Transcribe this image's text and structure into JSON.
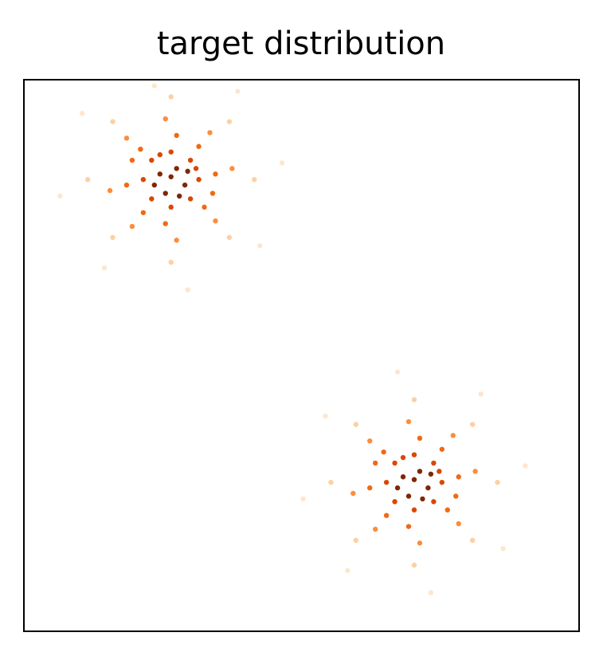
{
  "chart_data": {
    "type": "scatter",
    "title": "target distribution",
    "xlim": [
      0,
      10
    ],
    "ylim": [
      0,
      10
    ],
    "series": [
      {
        "color": "#fee6ce",
        "x": [
          4.65,
          3.85,
          2.35,
          1.05,
          0.65,
          1.45,
          2.95,
          4.25,
          9.03,
          8.23,
          6.73,
          5.43,
          5.03,
          5.83,
          7.33,
          8.63
        ],
        "values": [
          8.49,
          9.79,
          9.89,
          9.39,
          7.89,
          6.59,
          6.19,
          6.99,
          3.0,
          4.3,
          4.7,
          3.9,
          2.4,
          1.1,
          0.7,
          1.5
        ]
      },
      {
        "color": "#fdd0a2",
        "x": [
          4.15,
          3.7,
          2.65,
          1.6,
          1.15,
          1.6,
          2.65,
          3.7,
          8.53,
          8.08,
          7.03,
          5.98,
          5.53,
          5.98,
          7.03,
          8.08
        ],
        "values": [
          8.19,
          9.24,
          9.69,
          9.24,
          8.19,
          7.14,
          6.69,
          7.14,
          2.7,
          3.75,
          4.2,
          3.75,
          2.7,
          1.65,
          1.2,
          1.65
        ]
      },
      {
        "color": "#fd8d3c",
        "x": [
          3.75,
          3.35,
          2.55,
          1.85,
          1.55,
          1.95,
          2.75,
          3.45,
          8.13,
          7.73,
          6.93,
          6.23,
          5.93,
          6.33,
          7.13,
          7.83
        ],
        "values": [
          8.39,
          9.04,
          9.29,
          8.94,
          7.99,
          7.34,
          7.09,
          7.44,
          2.9,
          3.55,
          3.8,
          3.45,
          2.5,
          1.85,
          1.6,
          1.95
        ]
      },
      {
        "color": "#f16913",
        "x": [
          3.45,
          3.15,
          2.75,
          2.1,
          1.85,
          2.15,
          2.55,
          3.25,
          3.4,
          1.95,
          7.83,
          7.53,
          7.13,
          6.48,
          6.23,
          6.53,
          6.93,
          7.63,
          7.78,
          6.33
        ],
        "values": [
          8.29,
          8.79,
          8.99,
          8.74,
          8.09,
          7.59,
          7.39,
          7.69,
          7.94,
          8.54,
          2.8,
          3.3,
          3.5,
          3.25,
          2.6,
          2.1,
          1.9,
          2.2,
          2.45,
          3.05
        ]
      },
      {
        "color": "#d94801",
        "x": [
          3.15,
          3.0,
          2.65,
          2.3,
          2.15,
          2.3,
          2.65,
          3.0,
          3.1,
          2.45,
          7.53,
          7.38,
          7.03,
          6.68,
          6.53,
          6.68,
          7.03,
          7.38,
          7.48,
          6.83
        ],
        "values": [
          8.19,
          8.54,
          8.69,
          8.54,
          8.19,
          7.84,
          7.69,
          7.84,
          8.39,
          8.64,
          2.7,
          3.05,
          3.2,
          3.05,
          2.7,
          2.35,
          2.2,
          2.35,
          2.9,
          3.15
        ]
      },
      {
        "color": "#7f2704",
        "x": [
          2.75,
          2.45,
          2.9,
          2.55,
          2.65,
          2.95,
          2.35,
          2.8,
          7.13,
          6.83,
          7.28,
          6.93,
          7.03,
          7.33,
          6.73,
          7.18
        ],
        "values": [
          8.39,
          8.29,
          8.09,
          7.94,
          8.24,
          8.34,
          8.09,
          7.89,
          2.9,
          2.8,
          2.6,
          2.45,
          2.75,
          2.85,
          2.6,
          2.4
        ]
      }
    ]
  }
}
